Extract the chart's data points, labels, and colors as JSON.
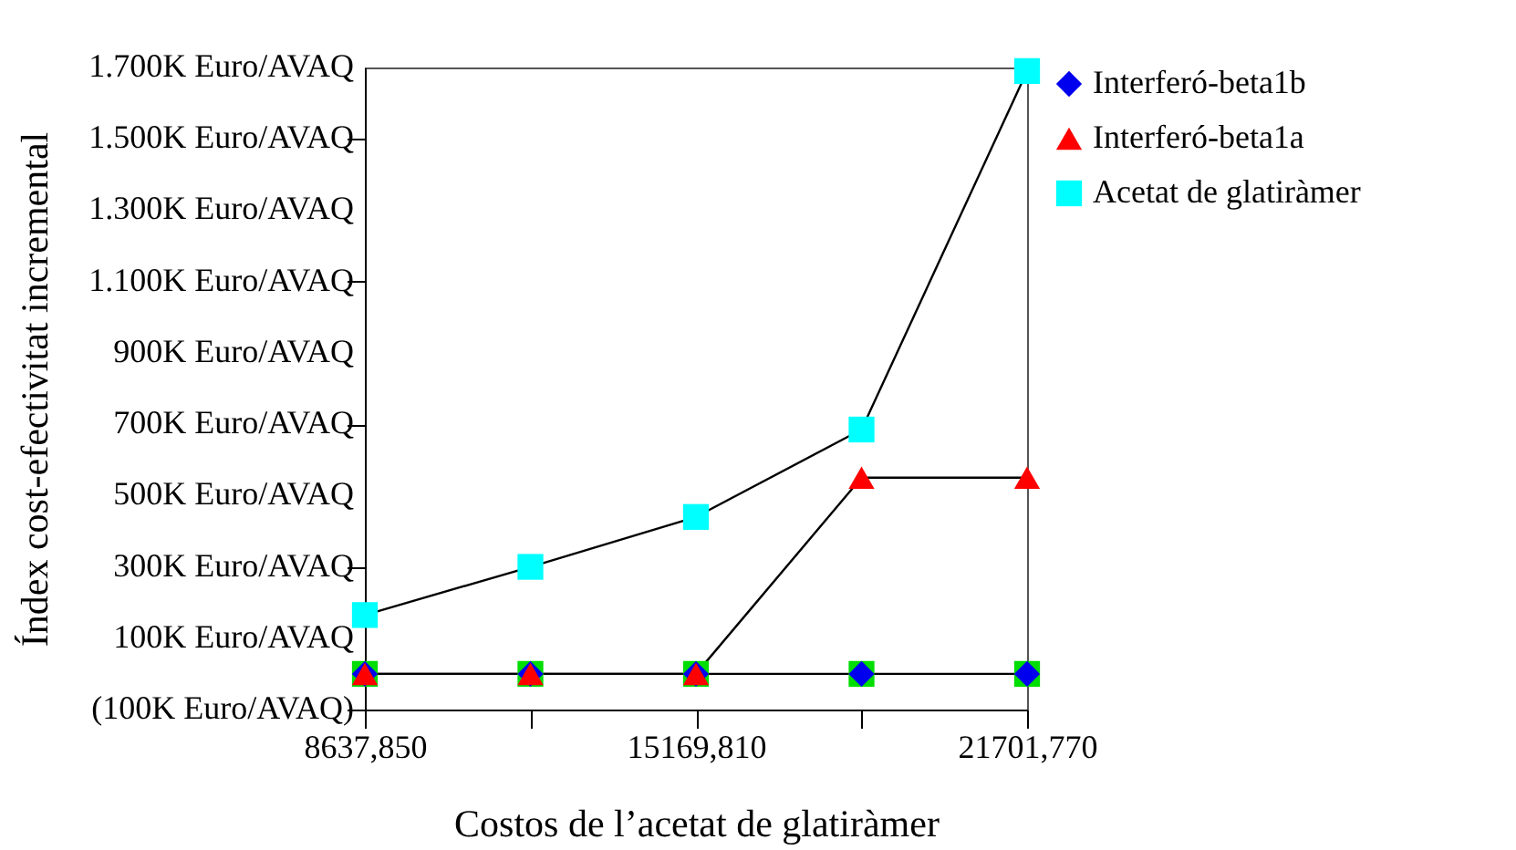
{
  "chart_data": {
    "type": "line",
    "xlabel": "Costos de l’acetat de glatiràmer",
    "ylabel": "Índex cost-efectivitat incremental",
    "categories": [
      "8637,850",
      null,
      "15169,810",
      null,
      "21701,770"
    ],
    "series": [
      {
        "type": "scatter",
        "color": "#00dd00",
        "marker": "square",
        "values": [
          0,
          0,
          0,
          0,
          0
        ]
      },
      {
        "name": "Interferó-beta1b",
        "color": "#0000ee",
        "marker": "diamond",
        "values": [
          0,
          0,
          0,
          0,
          0
        ]
      },
      {
        "name": "Interferó-beta1a",
        "color": "#ff0000",
        "marker": "triangle",
        "values": [
          0,
          0,
          0,
          550,
          550
        ]
      },
      {
        "name": "Acetat de glatiràmer",
        "color": "#00ffff",
        "marker": "square",
        "values": [
          165,
          300,
          440,
          685,
          1690
        ]
      }
    ],
    "ylim": [
      -100,
      1700
    ],
    "yticks": [
      {
        "value": -100,
        "label": "(100K Euro/AVAQ)"
      },
      {
        "value": 100,
        "label": "100K Euro/AVAQ"
      },
      {
        "value": 300,
        "label": "300K Euro/AVAQ"
      },
      {
        "value": 500,
        "label": "500K Euro/AVAQ"
      },
      {
        "value": 700,
        "label": "700K Euro/AVAQ"
      },
      {
        "value": 900,
        "label": "900K Euro/AVAQ"
      },
      {
        "value": 1100,
        "label": "1.100K Euro/AVAQ"
      },
      {
        "value": 1300,
        "label": "1.300K Euro/AVAQ"
      },
      {
        "value": 1500,
        "label": "1.500K Euro/AVAQ"
      },
      {
        "value": 1700,
        "label": "1.700K Euro/AVAQ"
      }
    ],
    "grid": false,
    "legend": "top right",
    "line_style": "solid"
  }
}
